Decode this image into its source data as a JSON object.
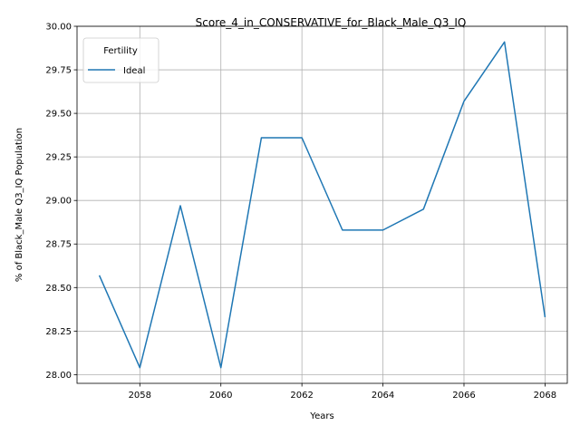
{
  "chart_data": {
    "type": "line",
    "title": "Score_4_in_CONSERVATIVE_for_Black_Male_Q3_IQ",
    "xlabel": "Years",
    "ylabel": "% of Black_Male Q3_IQ Population",
    "x": [
      2057,
      2058,
      2059,
      2060,
      2061,
      2062,
      2063,
      2064,
      2065,
      2066,
      2067,
      2068
    ],
    "series": [
      {
        "name": "Ideal",
        "color": "#1f77b4",
        "values": [
          28.57,
          28.04,
          28.97,
          28.04,
          29.36,
          29.36,
          28.83,
          28.83,
          28.95,
          29.57,
          29.91,
          28.33
        ]
      }
    ],
    "xlim": [
      2056.45,
      2068.55
    ],
    "ylim": [
      27.95,
      30.0
    ],
    "xticks": [
      2058,
      2060,
      2062,
      2064,
      2066,
      2068
    ],
    "yticks": [
      28.0,
      28.25,
      28.5,
      28.75,
      29.0,
      29.25,
      29.5,
      29.75,
      30.0
    ],
    "ytick_labels": [
      "28.00",
      "28.25",
      "28.50",
      "28.75",
      "29.00",
      "29.25",
      "29.50",
      "29.75",
      "30.00"
    ],
    "grid": true,
    "legend": {
      "title": "Fertility",
      "position": "top-left"
    }
  }
}
